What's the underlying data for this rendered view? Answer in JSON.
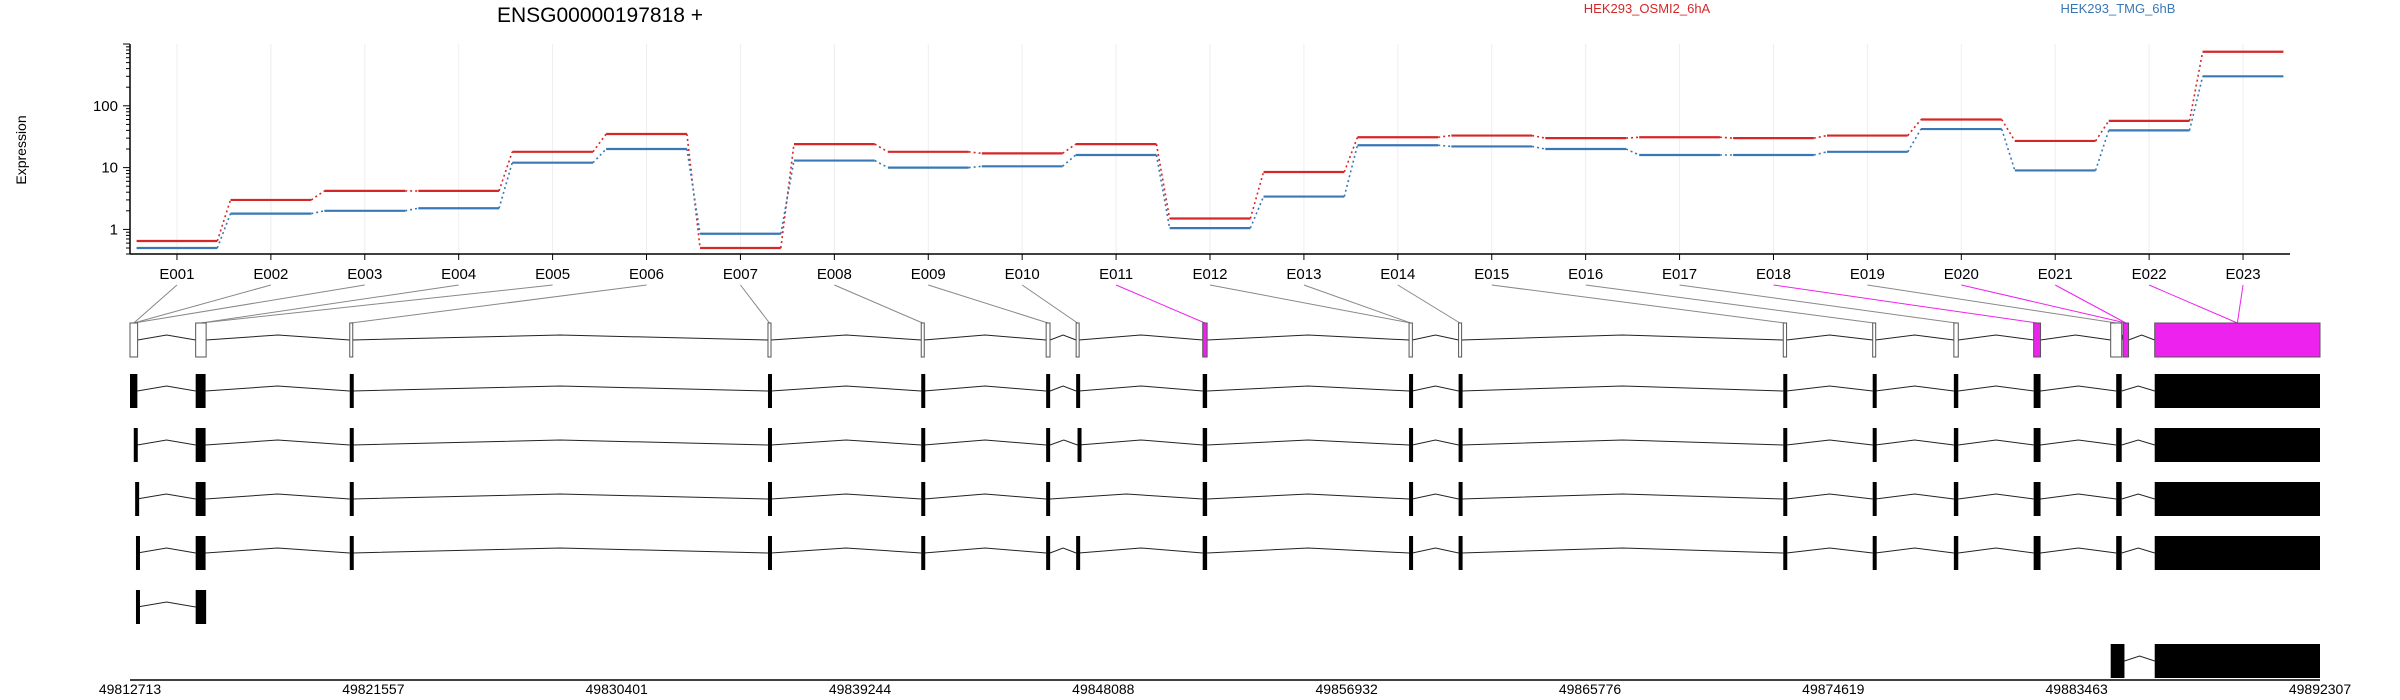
{
  "chart_data": {
    "type": "line",
    "title": "ENSG00000197818 +",
    "ylabel": "Expression",
    "yscale": "log",
    "ylim": [
      0.4,
      1000
    ],
    "yticks": [
      1,
      10,
      100
    ],
    "ytick_labels": [
      "1",
      "10",
      "100"
    ],
    "legend_placement": "top",
    "grid": true,
    "categories": [
      "E001",
      "E002",
      "E003",
      "E004",
      "E005",
      "E006",
      "E007",
      "E008",
      "E009",
      "E010",
      "E011",
      "E012",
      "E013",
      "E014",
      "E015",
      "E016",
      "E017",
      "E018",
      "E019",
      "E020",
      "E021",
      "E022",
      "E023"
    ],
    "series": [
      {
        "name": "HEK293_OSMI2_6hA",
        "color": "#d62728",
        "values": [
          0.65,
          3.0,
          4.2,
          4.2,
          18,
          35,
          0.5,
          24,
          18,
          17,
          24,
          1.5,
          8.5,
          31,
          33,
          30,
          31,
          30,
          33,
          60,
          27,
          57,
          750
        ]
      },
      {
        "name": "HEK293_TMG_6hB",
        "color": "#3a78b5",
        "values": [
          0.5,
          1.8,
          2.0,
          2.2,
          12,
          20,
          0.85,
          13,
          10,
          10.5,
          16,
          1.05,
          3.4,
          23,
          22,
          20,
          16,
          16,
          18,
          42,
          9,
          40,
          300
        ]
      }
    ],
    "highlight_color": "#ee22ee",
    "gene_start": 49812713,
    "gene_end": 49892307,
    "position_ticks": [
      49812713,
      49821557,
      49830401,
      49839244,
      49848088,
      49856932,
      49865776,
      49874619,
      49883463,
      49892307
    ],
    "position_tick_labels": [
      "49812713",
      "49821557",
      "49830401",
      "49839244",
      "49848088",
      "49856932",
      "49865776",
      "49874619",
      "49883463",
      "49892307"
    ],
    "exon_bins": [
      {
        "id": "E001",
        "start": 49812713,
        "end": 49812990,
        "highlight": false
      },
      {
        "id": "E002",
        "start": 49815100,
        "end": 49815480,
        "highlight": false
      },
      {
        "id": "E003",
        "start": 49820700,
        "end": 49820790,
        "highlight": false
      },
      {
        "id": "E004",
        "start": 49835900,
        "end": 49836010,
        "highlight": false
      },
      {
        "id": "E005",
        "start": 49841470,
        "end": 49841570,
        "highlight": false
      },
      {
        "id": "E006",
        "start": 49846010,
        "end": 49846150,
        "highlight": false
      },
      {
        "id": "E007",
        "start": 49847100,
        "end": 49847200,
        "highlight": false
      },
      {
        "id": "E008",
        "start": 49851700,
        "end": 49851860,
        "highlight": true
      },
      {
        "id": "E009",
        "start": 49859200,
        "end": 49859320,
        "highlight": false
      },
      {
        "id": "E010",
        "start": 49861000,
        "end": 49861100,
        "highlight": false
      },
      {
        "id": "E011",
        "start": 49872800,
        "end": 49872920,
        "highlight": false
      },
      {
        "id": "E012",
        "start": 49876050,
        "end": 49876150,
        "highlight": false
      },
      {
        "id": "E013",
        "start": 49879000,
        "end": 49879160,
        "highlight": false
      },
      {
        "id": "E014",
        "start": 49881900,
        "end": 49882150,
        "highlight": true
      },
      {
        "id": "E015",
        "start": 49884700,
        "end": 49885100,
        "highlight": false
      },
      {
        "id": "E016",
        "start": 49885150,
        "end": 49885350,
        "highlight": true
      },
      {
        "id": "E017",
        "start": 49886300,
        "end": 49892307,
        "highlight": true
      }
    ],
    "bin_label_to_exon": [
      0,
      0,
      0,
      1,
      1,
      2,
      3,
      4,
      5,
      6,
      7,
      8,
      8,
      9,
      10,
      11,
      12,
      13,
      14,
      15,
      15,
      16,
      16
    ],
    "transcripts": [
      {
        "exons": [
          [
            49812713,
            49812980
          ],
          [
            49815100,
            49815460
          ],
          [
            49820700,
            49820790
          ],
          [
            49835900,
            49836010
          ],
          [
            49841470,
            49841570
          ],
          [
            49846010,
            49846150
          ],
          [
            49847100,
            49847200
          ],
          [
            49851700,
            49851860
          ],
          [
            49859200,
            49859320
          ],
          [
            49861000,
            49861100
          ],
          [
            49872800,
            49872920
          ],
          [
            49876050,
            49876150
          ],
          [
            49879000,
            49879160
          ],
          [
            49881900,
            49882150
          ],
          [
            49884900,
            49885100
          ],
          [
            49886300,
            49892307
          ]
        ]
      },
      {
        "exons": [
          [
            49812850,
            49812980
          ],
          [
            49815100,
            49815460
          ],
          [
            49820700,
            49820790
          ],
          [
            49835900,
            49836010
          ],
          [
            49841470,
            49841570
          ],
          [
            49846010,
            49846150
          ],
          [
            49847150,
            49847200
          ],
          [
            49851700,
            49851860
          ],
          [
            49859200,
            49859320
          ],
          [
            49861000,
            49861100
          ],
          [
            49872800,
            49872920
          ],
          [
            49876050,
            49876150
          ],
          [
            49879000,
            49879160
          ],
          [
            49881900,
            49882150
          ],
          [
            49884900,
            49885100
          ],
          [
            49886300,
            49892307
          ]
        ]
      },
      {
        "exons": [
          [
            49812900,
            49812960
          ],
          [
            49815100,
            49815460
          ],
          [
            49820700,
            49820790
          ],
          [
            49835900,
            49836010
          ],
          [
            49841470,
            49841570
          ],
          [
            49846010,
            49846150
          ],
          [
            49851700,
            49851860
          ],
          [
            49859200,
            49859320
          ],
          [
            49861000,
            49861100
          ],
          [
            49872800,
            49872920
          ],
          [
            49876050,
            49876150
          ],
          [
            49879000,
            49879160
          ],
          [
            49881900,
            49882150
          ],
          [
            49884900,
            49885100
          ],
          [
            49886300,
            49892307
          ]
        ]
      },
      {
        "exons": [
          [
            49812930,
            49812980
          ],
          [
            49815100,
            49815460
          ],
          [
            49820700,
            49820790
          ],
          [
            49835900,
            49836010
          ],
          [
            49841470,
            49841570
          ],
          [
            49846010,
            49846150
          ],
          [
            49847100,
            49847200
          ],
          [
            49851700,
            49851860
          ],
          [
            49859200,
            49859320
          ],
          [
            49861000,
            49861100
          ],
          [
            49872800,
            49872920
          ],
          [
            49876050,
            49876150
          ],
          [
            49879000,
            49879160
          ],
          [
            49881900,
            49882150
          ],
          [
            49884900,
            49885100
          ],
          [
            49886300,
            49892307
          ]
        ]
      },
      {
        "exons": [
          [
            49812930,
            49812980
          ],
          [
            49815100,
            49815480
          ]
        ]
      },
      {
        "exons": [
          [
            49884700,
            49885200
          ],
          [
            49886300,
            49892307
          ]
        ]
      }
    ]
  }
}
